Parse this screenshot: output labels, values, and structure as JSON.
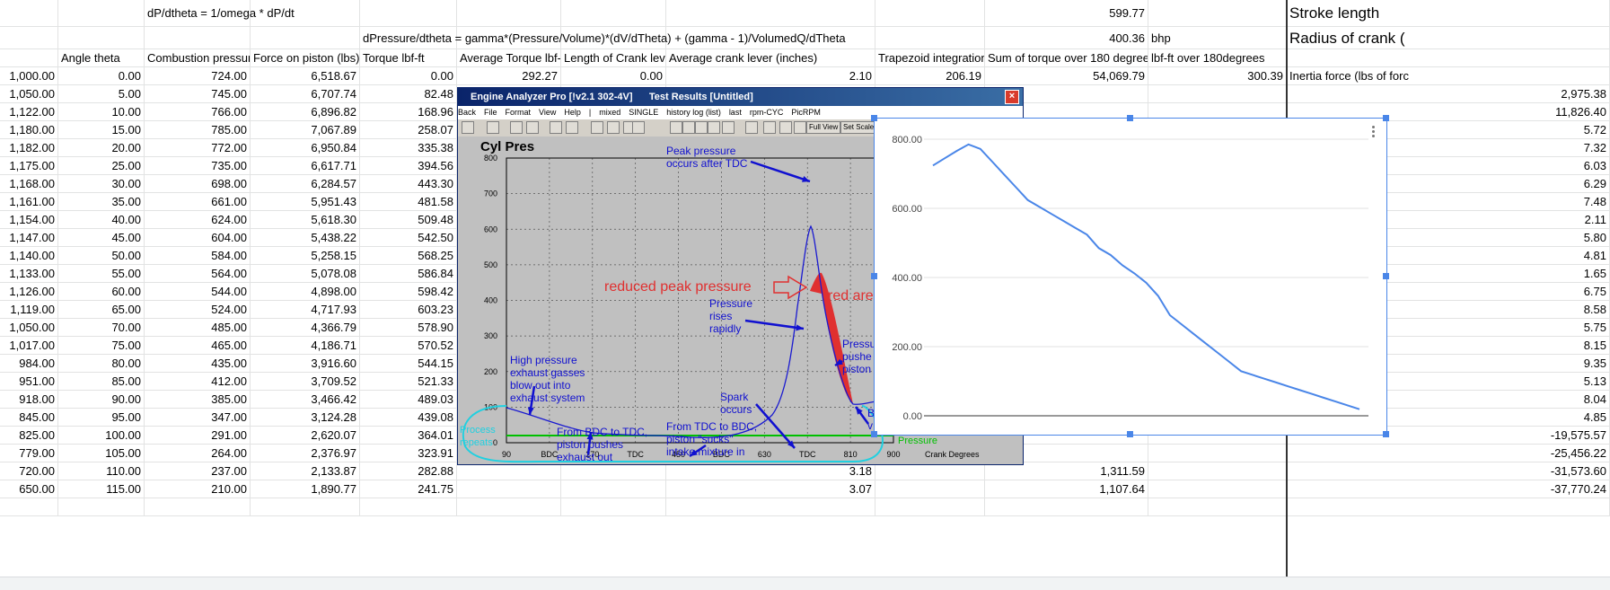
{
  "header_rows": {
    "r1": {
      "formula": "dP/dtheta = 1/omega * dP/dt",
      "value": "599.77",
      "label": "Stroke length"
    },
    "r2": {
      "formula": "dPressure/dtheta = gamma*(Pressure/Volume)*(dV/dTheta) + (gamma - 1)/VolumedQ/dTheta",
      "value": "400.36",
      "unit": "bhp",
      "label": "Radius of crank ("
    },
    "r3": [
      "Angle theta",
      "Combustion pressur",
      "Force on piston (lbs)",
      "Torque lbf-ft",
      "Average Torque lbf-",
      "Length of Crank lever (inches)",
      "Average crank lever (inches)",
      "Trapezoid integration",
      "Sum of torque over 180 degree",
      "lbf-ft over 180degrees"
    ]
  },
  "summary_row": {
    "avg_torque": "292.27",
    "crank_len": "0.00",
    "avg_lever": "2.10",
    "trapezoid": "206.19",
    "sum_torque": "54,069.79",
    "lbf_ft": "300.39",
    "inertia_header": "Inertia force (lbs of forc"
  },
  "rows": [
    [
      "1,000.00",
      "0.00",
      "724.00",
      "6,518.67",
      "0.00"
    ],
    [
      "1,050.00",
      "5.00",
      "745.00",
      "6,707.74",
      "82.48"
    ],
    [
      "1,122.00",
      "10.00",
      "766.00",
      "6,896.82",
      "168.96"
    ],
    [
      "1,180.00",
      "15.00",
      "785.00",
      "7,067.89",
      "258.07"
    ],
    [
      "1,182.00",
      "20.00",
      "772.00",
      "6,950.84",
      "335.38"
    ],
    [
      "1,175.00",
      "25.00",
      "735.00",
      "6,617.71",
      "394.56"
    ],
    [
      "1,168.00",
      "30.00",
      "698.00",
      "6,284.57",
      "443.30"
    ],
    [
      "1,161.00",
      "35.00",
      "661.00",
      "5,951.43",
      "481.58"
    ],
    [
      "1,154.00",
      "40.00",
      "624.00",
      "5,618.30",
      "509.48"
    ],
    [
      "1,147.00",
      "45.00",
      "604.00",
      "5,438.22",
      "542.50"
    ],
    [
      "1,140.00",
      "50.00",
      "584.00",
      "5,258.15",
      "568.25"
    ],
    [
      "1,133.00",
      "55.00",
      "564.00",
      "5,078.08",
      "586.84"
    ],
    [
      "1,126.00",
      "60.00",
      "544.00",
      "4,898.00",
      "598.42"
    ],
    [
      "1,119.00",
      "65.00",
      "524.00",
      "4,717.93",
      "603.23"
    ],
    [
      "1,050.00",
      "70.00",
      "485.00",
      "4,366.79",
      "578.90"
    ],
    [
      "1,017.00",
      "75.00",
      "465.00",
      "4,186.71",
      "570.52"
    ],
    [
      "984.00",
      "80.00",
      "435.00",
      "3,916.60",
      "544.15"
    ],
    [
      "951.00",
      "85.00",
      "412.00",
      "3,709.52",
      "521.33"
    ],
    [
      "918.00",
      "90.00",
      "385.00",
      "3,466.42",
      "489.03"
    ],
    [
      "845.00",
      "95.00",
      "347.00",
      "3,124.28",
      "439.08"
    ],
    [
      "825.00",
      "100.00",
      "291.00",
      "2,620.07",
      "364.01"
    ],
    [
      "779.00",
      "105.00",
      "264.00",
      "2,376.97",
      "323.91"
    ],
    [
      "720.00",
      "110.00",
      "237.00",
      "2,133.87",
      "282.88"
    ],
    [
      "650.00",
      "115.00",
      "210.00",
      "1,890.77",
      "241.75"
    ]
  ],
  "row_extras": {
    "r22": {
      "lever": "3.18",
      "trap": "1,311.59"
    },
    "r23": {
      "lever": "3.07",
      "trap": "1,107.64"
    }
  },
  "right_col": [
    "2,975.38",
    "11,826.40",
    "5.72",
    "7.32",
    "6.03",
    "6.29",
    "7.48",
    "2.11",
    "5.80",
    "4.81",
    "1.65",
    "6.75",
    "8.58",
    "5.75",
    "8.15",
    "9.35",
    "5.13",
    "8.04",
    "4.85",
    "-19,575.57",
    "-25,456.22",
    "-31,573.60",
    "-37,770.24"
  ],
  "engine_window": {
    "title": "Engine Analyzer Pro [!v2.1 302-4V]",
    "subtitle": "Test Results [Untitled]",
    "menu": [
      "Back",
      "File",
      "Format",
      "View",
      "Help",
      "|",
      "mixed",
      "SINGLE",
      "history log (list)",
      "last",
      "rpm-CYC",
      "PicRPM"
    ],
    "full_view": "Full View",
    "set_scale": "Set Scale",
    "plot_title": "Cyl Pres",
    "y_ticks": [
      "800",
      "700",
      "600",
      "500",
      "400",
      "300",
      "200",
      "100",
      "0"
    ],
    "x_ticks": [
      "90",
      "BDC",
      "270",
      "TDC",
      "450",
      "BDC",
      "630",
      "TDC",
      "810",
      "900"
    ],
    "x_axis_label": "Crank Degrees",
    "legend_pressure": "Pressure",
    "annotations": {
      "peak": [
        "Peak pressure",
        "occurs after TDC"
      ],
      "reduced": "reduced peak pressure",
      "red_area": "red are",
      "rises": [
        "Pressure",
        "rises",
        "rapidly"
      ],
      "pushes": [
        "Pressu",
        "pushe",
        "piston"
      ],
      "high": [
        "High pressure",
        "exhaust gasses",
        "blow out into",
        "exhaust system"
      ],
      "spark": [
        "Spark",
        "occurs"
      ],
      "bdc_tdc": [
        "From BDC to TDC,",
        "piston pushes",
        "exhaust out"
      ],
      "tdc_bdc": [
        "From TDC to BDC,",
        "piston \"sucks\"",
        "intake mixture in"
      ],
      "process": [
        "Process",
        "repeats"
      ],
      "b_v": [
        "B",
        "v"
      ]
    },
    "colors": {
      "annotation": "#1010d0",
      "red_note": "#e03030",
      "cyan": "#20d0e0",
      "pressure": "#00c000",
      "trace": "#1a1ad0"
    }
  },
  "chart_data": {
    "type": "line",
    "y_ticks": [
      "800.00",
      "600.00",
      "400.00",
      "200.00",
      "0.00"
    ],
    "ylim": [
      0,
      800
    ],
    "x": [
      0,
      5,
      10,
      15,
      20,
      25,
      30,
      35,
      40,
      45,
      50,
      55,
      60,
      65,
      70,
      75,
      80,
      85,
      90,
      95,
      100,
      105,
      110,
      115,
      120,
      125,
      130,
      135,
      140,
      145,
      150,
      155,
      160,
      165,
      170,
      175,
      180
    ],
    "values": [
      724,
      745,
      766,
      785,
      772,
      735,
      698,
      661,
      624,
      604,
      584,
      564,
      544,
      524,
      485,
      465,
      435,
      412,
      385,
      347,
      291,
      264,
      237,
      210,
      183,
      156,
      129,
      118,
      107,
      96,
      85,
      74,
      63,
      52,
      41,
      30,
      19
    ],
    "color": "#4a86e8",
    "grid": true
  }
}
